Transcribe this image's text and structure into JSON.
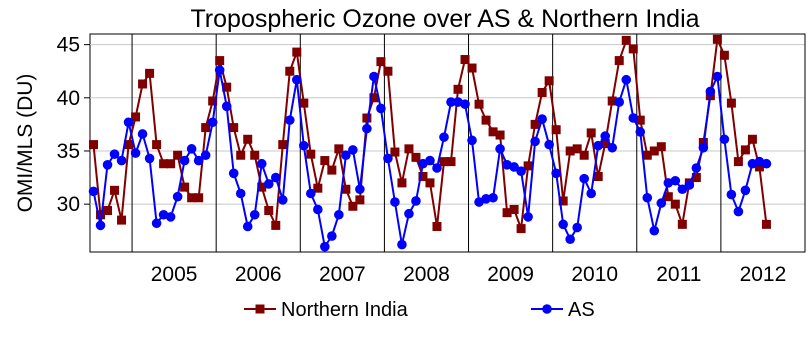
{
  "chart_data": {
    "type": "line",
    "title": "Tropospheric Ozone over AS & Northern India",
    "ylabel": "OMI/MLS (DU)",
    "xlabel": "",
    "x_start": "2004-07",
    "x_end": "2012-12",
    "xlim": [
      "2004-07",
      "2013-01"
    ],
    "ylim": [
      25.5,
      46
    ],
    "yticks": [
      30,
      35,
      40,
      45
    ],
    "x_tick_labels": [
      "2005",
      "2006",
      "2007",
      "2008",
      "2009",
      "2010",
      "2011",
      "2012"
    ],
    "grid": true,
    "legend_position": "bottom",
    "series": [
      {
        "name": "Northern India",
        "color": "#800000",
        "marker": "square",
        "values": [
          35.6,
          29.0,
          29.4,
          31.3,
          28.5,
          35.6,
          38.2,
          41.3,
          42.3,
          35.6,
          33.8,
          33.8,
          34.6,
          31.6,
          30.6,
          30.6,
          37.2,
          39.7,
          43.5,
          41.0,
          37.2,
          34.6,
          36.1,
          34.6,
          31.6,
          29.4,
          28.0,
          35.6,
          42.5,
          44.3,
          39.5,
          34.7,
          31.5,
          34.1,
          33.2,
          35.2,
          31.4,
          29.8,
          30.4,
          38.1,
          40.0,
          43.4,
          42.5,
          34.9,
          32.0,
          35.2,
          34.4,
          32.6,
          32.0,
          27.9,
          34.0,
          34.0,
          40.8,
          43.6,
          42.8,
          39.4,
          37.9,
          36.8,
          36.5,
          29.2,
          29.5,
          27.7,
          33.6,
          37.5,
          40.5,
          41.6,
          37.0,
          30.3,
          35.0,
          35.2,
          34.6,
          36.7,
          32.6,
          35.7,
          39.7,
          43.5,
          45.4,
          44.6,
          37.9,
          34.6,
          35.0,
          35.4,
          30.7,
          30.0,
          28.1,
          32.0,
          32.5,
          35.8,
          40.2,
          45.5,
          44.0,
          39.5,
          34.0,
          35.1,
          36.1,
          33.5,
          28.1
        ]
      },
      {
        "name": "AS",
        "color": "#0000ff",
        "marker": "circle",
        "values": [
          31.2,
          28.0,
          33.7,
          34.7,
          34.1,
          37.7,
          34.8,
          36.6,
          34.3,
          28.2,
          29.0,
          28.8,
          30.7,
          34.1,
          35.2,
          34.1,
          34.6,
          37.7,
          42.6,
          39.2,
          32.9,
          31.0,
          27.9,
          29.0,
          33.8,
          31.9,
          32.5,
          30.4,
          37.9,
          41.7,
          35.5,
          31.0,
          29.5,
          26.0,
          27.0,
          29.0,
          34.6,
          35.1,
          31.4,
          37.1,
          42.0,
          39.0,
          34.3,
          30.2,
          26.2,
          29.1,
          30.3,
          33.8,
          34.1,
          33.4,
          36.3,
          39.6,
          39.6,
          39.4,
          36.0,
          30.2,
          30.5,
          30.6,
          35.2,
          33.7,
          33.5,
          33.1,
          28.8,
          35.9,
          38.0,
          35.6,
          32.9,
          28.1,
          26.7,
          27.8,
          32.4,
          31.0,
          35.5,
          36.4,
          35.3,
          39.6,
          41.7,
          38.1,
          36.8,
          30.6,
          27.5,
          30.1,
          32.0,
          32.2,
          31.4,
          31.8,
          33.4,
          35.3,
          40.6,
          42.0,
          36.1,
          30.9,
          29.3,
          31.3,
          33.8,
          34.0,
          33.8
        ]
      }
    ]
  }
}
